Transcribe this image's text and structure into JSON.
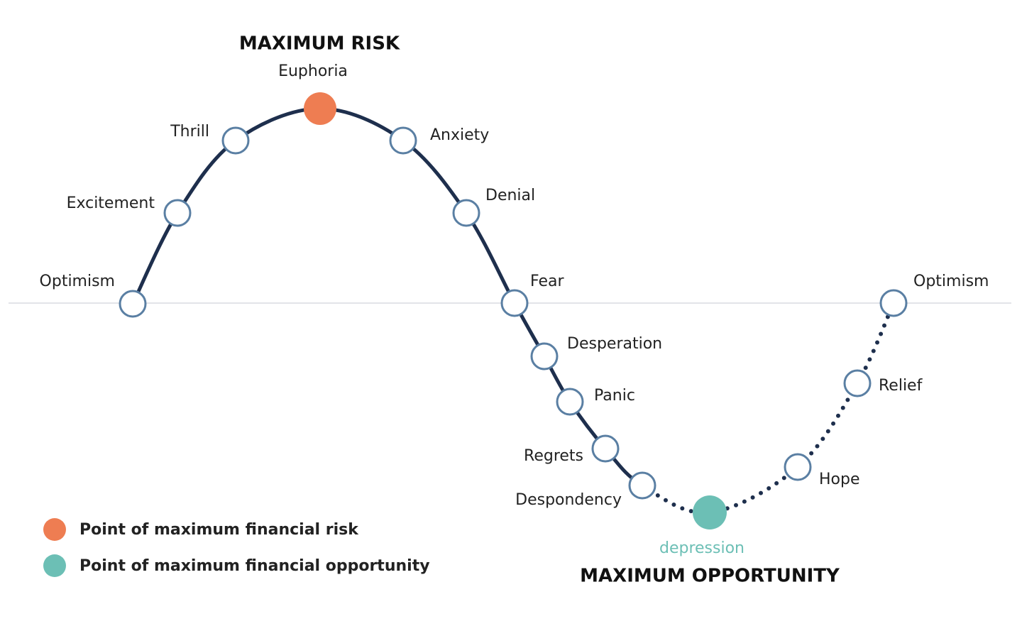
{
  "headings": {
    "risk": "MAXIMUM RISK",
    "opportunity": "MAXIMUM OPPORTUNITY"
  },
  "nodes": [
    {
      "label": "Optimism"
    },
    {
      "label": "Excitement"
    },
    {
      "label": "Thrill"
    },
    {
      "label": "Euphoria"
    },
    {
      "label": "Anxiety"
    },
    {
      "label": "Denial"
    },
    {
      "label": "Fear"
    },
    {
      "label": "Desperation"
    },
    {
      "label": "Panic"
    },
    {
      "label": "Regrets"
    },
    {
      "label": "Despondency"
    },
    {
      "label": "depression"
    },
    {
      "label": "Hope"
    },
    {
      "label": "Relief"
    },
    {
      "label": "Optimism"
    }
  ],
  "legend": [
    {
      "label": "Point of maximum financial risk"
    },
    {
      "label": "Point of maximum financial opportunity"
    }
  ]
}
